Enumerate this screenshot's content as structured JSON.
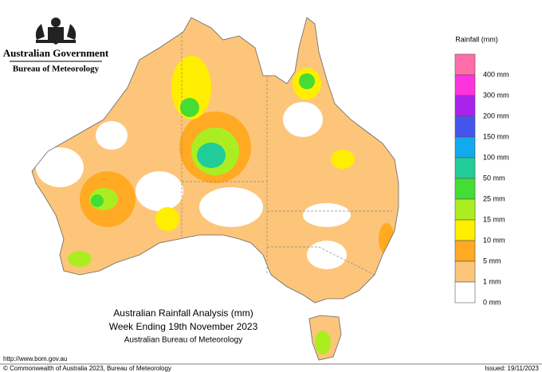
{
  "header": {
    "government": "Australian Government",
    "agency": "Bureau of Meteorology"
  },
  "legend": {
    "title": "Rainfall (mm)",
    "colors": [
      "#ff6ea8",
      "#ff33dd",
      "#aa22ee",
      "#4455ee",
      "#11aaee",
      "#22cc99",
      "#44dd33",
      "#aaee22",
      "#ffee00",
      "#ffaa22",
      "#fcc57a",
      "#ffffff"
    ],
    "labels": [
      "400 mm",
      "300 mm",
      "200 mm",
      "150 mm",
      "100 mm",
      "50 mm",
      "25 mm",
      "15 mm",
      "10 mm",
      "5 mm",
      "1 mm",
      "0 mm"
    ]
  },
  "map": {
    "title": "Australian Rainfall Analysis (mm)",
    "subtitle": "Week Ending 19th November 2023",
    "source": "Australian Bureau of Meteorology"
  },
  "footer": {
    "url": "http://www.bom.gov.au",
    "copyright": "© Commonwealth of Australia 2023, Bureau of Meteorology",
    "issued": "Issued: 19/11/2023"
  }
}
